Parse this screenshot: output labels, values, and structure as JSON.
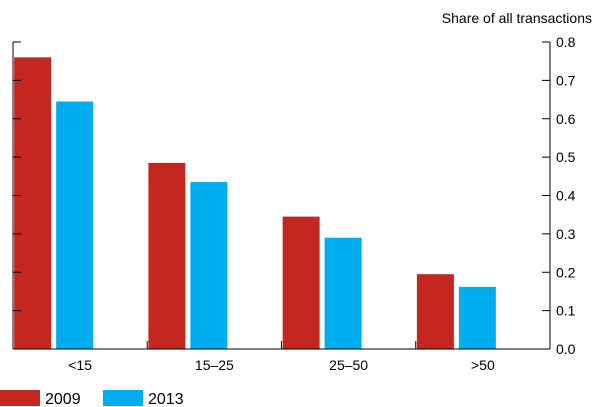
{
  "chart_data": {
    "type": "bar",
    "categories": [
      "<15",
      "15–25",
      "25–50",
      ">50"
    ],
    "series": [
      {
        "name": "2009",
        "values": [
          0.76,
          0.485,
          0.345,
          0.195
        ],
        "color": "#c4271f"
      },
      {
        "name": "2013",
        "values": [
          0.645,
          0.435,
          0.29,
          0.162
        ],
        "color": "#00aeef"
      }
    ],
    "ylabel": "Share of all transactions",
    "ylim": [
      0,
      0.8
    ],
    "yticks": [
      "0.0",
      "0.1",
      "0.2",
      "0.3",
      "0.4",
      "0.5",
      "0.6",
      "0.7",
      "0.8"
    ],
    "y_axis_side": "right",
    "grid": false,
    "legend_position": "bottom-left"
  }
}
